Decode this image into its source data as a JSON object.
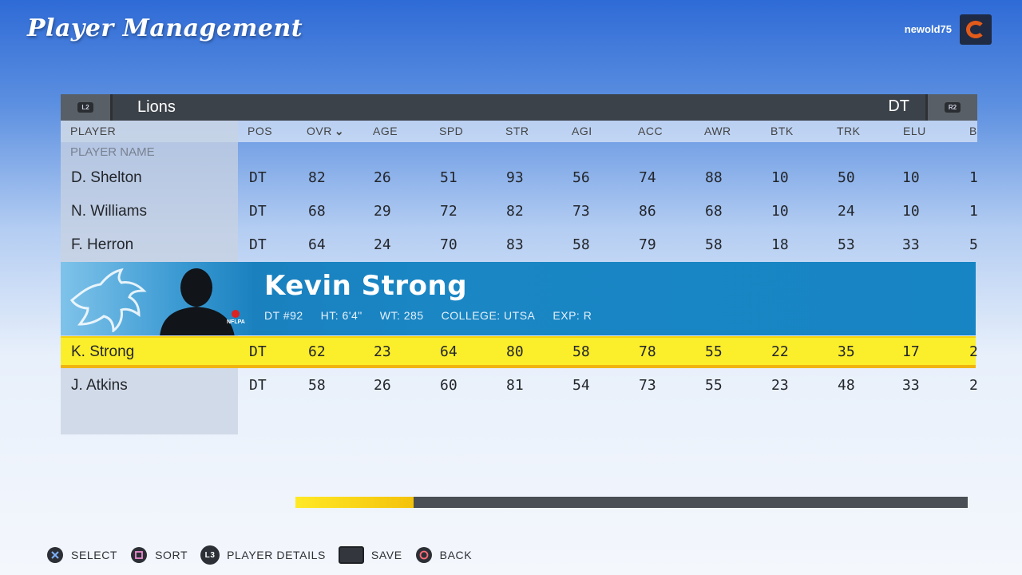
{
  "header": {
    "title": "Player Management",
    "username": "newold75",
    "team_logo": "bears-logo-icon"
  },
  "team_bar": {
    "left_bumper": "L2",
    "right_bumper": "R2",
    "team": "Lions",
    "position_filter": "DT"
  },
  "table": {
    "columns": [
      "PLAYER",
      "POS",
      "OVR",
      "AGE",
      "SPD",
      "STR",
      "AGI",
      "ACC",
      "AWR",
      "BTK",
      "TRK",
      "ELU",
      "B"
    ],
    "sort_indicator": "⌄",
    "sub_label": "PLAYER NAME",
    "rows": [
      {
        "name": "D. Shelton",
        "cells": [
          "DT",
          "82",
          "26",
          "51",
          "93",
          "56",
          "74",
          "88",
          "10",
          "50",
          "10",
          "1"
        ]
      },
      {
        "name": "N. Williams",
        "cells": [
          "DT",
          "68",
          "29",
          "72",
          "82",
          "73",
          "86",
          "68",
          "10",
          "24",
          "10",
          "1"
        ]
      },
      {
        "name": "F. Herron",
        "cells": [
          "DT",
          "64",
          "24",
          "70",
          "83",
          "58",
          "79",
          "58",
          "18",
          "53",
          "33",
          "5"
        ]
      },
      {
        "name": "K. Strong",
        "cells": [
          "DT",
          "62",
          "23",
          "64",
          "80",
          "58",
          "78",
          "55",
          "22",
          "35",
          "17",
          "2"
        ]
      },
      {
        "name": "J. Atkins",
        "cells": [
          "DT",
          "58",
          "26",
          "60",
          "81",
          "54",
          "73",
          "55",
          "23",
          "48",
          "33",
          "2"
        ]
      }
    ]
  },
  "selected_player": {
    "full_name": "Kevin Strong",
    "pos_number": "DT #92",
    "height": "HT: 6'4\"",
    "weight": "WT: 285",
    "college": "COLLEGE: UTSA",
    "experience": "EXP: R",
    "badge": "NFLPA"
  },
  "scroll_progress": 0.176,
  "footer": [
    {
      "button": "cross-button-icon",
      "label": "SELECT"
    },
    {
      "button": "square-button-icon",
      "label": "SORT"
    },
    {
      "button": "l3-button-icon",
      "glyph": "L3",
      "label": "PLAYER DETAILS"
    },
    {
      "button": "touchpad-button-icon",
      "label": "SAVE"
    },
    {
      "button": "circle-button-icon",
      "label": "BACK"
    }
  ],
  "colors": {
    "accent_yellow": "#fbee2a",
    "lions_blue": "#1a86c4",
    "bar_dark": "#3c4249"
  }
}
